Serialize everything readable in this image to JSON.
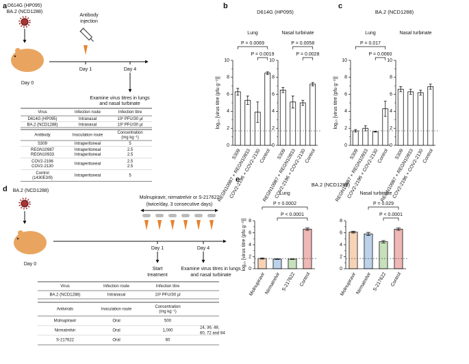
{
  "panel_a": {
    "label": "a",
    "virus": [
      "D614G (HP095)",
      "BA.2 (NCD1288)"
    ],
    "injection": [
      "Antibody",
      "injection"
    ],
    "day0": "Day 0",
    "day1": "Day 1",
    "day4": "Day 4",
    "examine": [
      "Examine virus titres in lungs",
      "and nasal turbinate"
    ],
    "virus_table": {
      "header": [
        "Virus",
        "Infection route",
        "Infection titre"
      ],
      "rows": [
        [
          "D614G (HP095)",
          "Intranasal",
          "10³ PFU/30 µl"
        ],
        [
          "BA.2 (NCD1288)",
          "Intranasal",
          "10³ PFU/30 µl"
        ]
      ]
    },
    "antibody_table": {
      "header": [
        "Antibody",
        "Inoculation route",
        [
          "Concentration",
          "(mg kg⁻¹)"
        ]
      ],
      "rows": [
        [
          "S309",
          "Intraperitoneal",
          "5"
        ],
        [
          [
            "REGN10987",
            "REGN10933"
          ],
          [
            "Intraperitoneal",
            "Intraperitoneal"
          ],
          [
            "2.5",
            "2.5"
          ]
        ],
        [
          [
            "COV2-2196",
            "COV2-2130"
          ],
          "Intraperitoneal",
          [
            "2.5",
            "2.5"
          ]
        ],
        [
          [
            "Control",
            "(1430E3/9)"
          ],
          "Intraperitoneal",
          "5"
        ]
      ]
    }
  },
  "panel_d": {
    "label": "d",
    "virus": "BA.2 (NCD1288)",
    "treatment": [
      "Molnupiravir, nirmatrelvir or S-217622",
      "(twice/day, 3 consecutive days)"
    ],
    "day0": "Day 0",
    "day1": "Day 1",
    "day4": "Day 4",
    "start": [
      "Start",
      "treatment"
    ],
    "examine": [
      "Examine virus titres in lungs",
      "and nasal turbinate"
    ],
    "virus_table": {
      "header": [
        "Virus",
        "Infection route",
        "Infection titre"
      ],
      "rows": [
        [
          "BA.2 (NCD1288)",
          "Intranasal",
          "10³ PFU/30 µl"
        ]
      ]
    },
    "antiviral_table": {
      "header": [
        "Antivirals",
        "Inoculation route",
        [
          "Concentration",
          "(mg kg⁻¹)"
        ]
      ],
      "rows": [
        [
          "Molnupiravir",
          "Oral",
          "500"
        ],
        [
          "Nirmatrelvir",
          "Oral",
          "1,000"
        ],
        [
          "S-217622",
          "Oral",
          "60"
        ]
      ]
    },
    "sampling": [
      "24, 36, 48,",
      "60, 72 and 84"
    ]
  },
  "groups": [
    {
      "label": "b",
      "title": "D614G (HP095)",
      "y_label": "log₁₀ [virus titre (pfu g⁻¹)]"
    },
    {
      "label": "c",
      "title": "BA.2 (NCD1288)",
      "y_label": "log₁₀ [virus titre (pfu g⁻¹)]"
    },
    {
      "label": "e",
      "title": "BA.2 (NCD1288)",
      "y_label": "log₁₀ [virus titre (pfu g⁻¹)]"
    }
  ],
  "chart_data": [
    {
      "type": "bar",
      "title": "Lung",
      "categories": [
        "S309",
        "REGN10987 + REGN10933",
        "COV2-2196 + COV2-2130",
        "Control"
      ],
      "values": [
        6.3,
        5.3,
        3.9,
        8.5
      ],
      "errors": [
        0.4,
        0.5,
        1.2,
        0.15
      ],
      "color": "#ffffff",
      "ylim": [
        0,
        10
      ],
      "yticks": [
        0,
        2,
        4,
        6,
        8,
        10
      ],
      "yticks_minor": [
        1,
        3,
        5,
        7,
        9
      ],
      "detection_limit": 1.7,
      "comparisons": [
        {
          "label": "P = 0.0069",
          "from": "S309",
          "to": "Control"
        },
        {
          "label": "P = 0.0019",
          "from": "COV2-2196 + COV2-2130",
          "to": "Control"
        }
      ]
    },
    {
      "type": "bar",
      "title": "Nasal turbinate",
      "categories": [
        "S309",
        "REGN10987 + REGN10933",
        "COV2-2196 + COV2-2130",
        "Control"
      ],
      "values": [
        6.5,
        5.1,
        5.0,
        7.2
      ],
      "errors": [
        0.3,
        0.7,
        0.3,
        0.2
      ],
      "color": "#ffffff",
      "ylim": [
        0,
        10
      ],
      "yticks": [
        0,
        2,
        4,
        6,
        8,
        10
      ],
      "yticks_minor": [
        1,
        3,
        5,
        7,
        9
      ],
      "detection_limit": 1.7,
      "comparisons": [
        {
          "label": "P = 0.0058",
          "from": "REGN10987 + REGN10933",
          "to": "Control"
        },
        {
          "label": "P = 0.0028",
          "from": "COV2-2196 + COV2-2130",
          "to": "Control"
        }
      ]
    },
    {
      "type": "bar",
      "title": "Lung",
      "categories": [
        "S309",
        "REGN10987 + REGN10933",
        "COV2-2196 + COV2-2130",
        "Control"
      ],
      "values": [
        1.7,
        2.0,
        1.6,
        4.3
      ],
      "errors": [
        0.15,
        0.3,
        0.05,
        0.9
      ],
      "color": "#ffffff",
      "ylim": [
        0,
        10
      ],
      "yticks": [
        0,
        2,
        4,
        6,
        8,
        10
      ],
      "yticks_minor": [
        1,
        3,
        5,
        7,
        9
      ],
      "detection_limit": 1.7,
      "comparisons": [
        {
          "label": "P = 0.017",
          "from": "S309",
          "to": "Control"
        },
        {
          "label": "P = 0.0060",
          "from": "COV2-2196 + COV2-2130",
          "to": "Control"
        }
      ]
    },
    {
      "type": "bar",
      "title": "Nasal turbinate",
      "categories": [
        "S309",
        "REGN10987 + REGN10933",
        "COV2-2196 + COV2-2130",
        "Control"
      ],
      "values": [
        6.6,
        6.3,
        6.2,
        6.9
      ],
      "errors": [
        0.3,
        0.3,
        0.3,
        0.3
      ],
      "color": "#ffffff",
      "ylim": [
        0,
        10
      ],
      "yticks": [
        0,
        2,
        4,
        6,
        8,
        10
      ],
      "yticks_minor": [
        1,
        3,
        5,
        7,
        9
      ],
      "detection_limit": 1.7,
      "comparisons": []
    },
    {
      "type": "bar",
      "title": "Lung",
      "categories": [
        "Molnupiravir",
        "Nirmatrelvir",
        "S-217622",
        "Control"
      ],
      "values": [
        1.7,
        1.6,
        1.6,
        6.6
      ],
      "errors": [
        0.1,
        0.05,
        0.05,
        0.2
      ],
      "colors": [
        "#e8822e",
        "#3b7fc4",
        "#5ba83c",
        "#d2302c"
      ],
      "ylim": [
        0,
        8
      ],
      "yticks": [
        0,
        2,
        4,
        6,
        8
      ],
      "yticks_minor": [
        1,
        3,
        5,
        7
      ],
      "detection_limit": 1.7,
      "comparisons": [
        {
          "label": "P = 0.0002",
          "from": "Molnupiravir",
          "to": "Control"
        },
        {
          "label": "P < 0.0001",
          "from": "Nirmatrelvir",
          "to": "Control"
        }
      ]
    },
    {
      "type": "bar",
      "title": "Nasal turbinate",
      "categories": [
        "Molnupiravir",
        "Nirmatrelvir",
        "S-217622",
        "Control"
      ],
      "values": [
        6.1,
        5.8,
        4.5,
        6.6
      ],
      "errors": [
        0.15,
        0.25,
        0.2,
        0.2
      ],
      "colors": [
        "#e8822e",
        "#3b7fc4",
        "#5ba83c",
        "#d2302c"
      ],
      "ylim": [
        0,
        8
      ],
      "yticks": [
        0,
        2,
        4,
        6,
        8
      ],
      "yticks_minor": [
        1,
        3,
        5,
        7
      ],
      "detection_limit": 1.7,
      "comparisons": [
        {
          "label": "P = 0.029",
          "from": "Nirmatrelvir",
          "to": "Control"
        },
        {
          "label": "P < 0.0001",
          "from": "S-217622",
          "to": "Control"
        }
      ]
    }
  ]
}
